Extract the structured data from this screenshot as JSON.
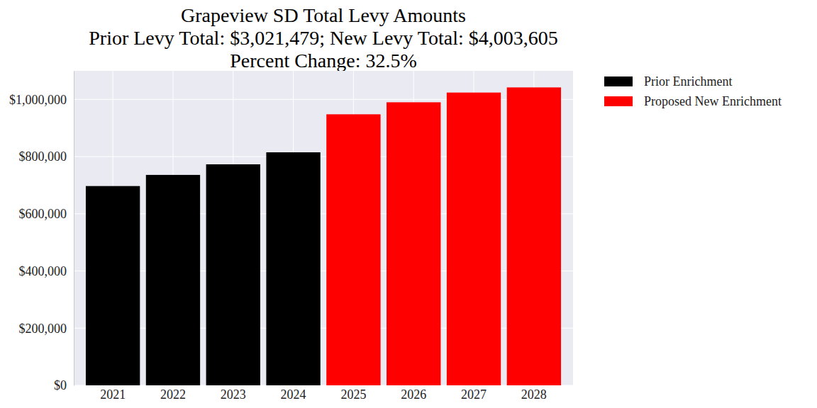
{
  "chart_data": {
    "type": "bar",
    "title": "Grapeview SD Total Levy Amounts",
    "subtitle": [
      "Prior Levy Total:  $3,021,479; New Levy Total: $4,003,605",
      "Percent Change: 32.5%"
    ],
    "categories": [
      "2021",
      "2022",
      "2023",
      "2024",
      "2025",
      "2026",
      "2027",
      "2028"
    ],
    "series": [
      {
        "name": "Prior Enrichment",
        "color": "#000000",
        "values": [
          697000,
          736000,
          773000,
          815000,
          null,
          null,
          null,
          null
        ]
      },
      {
        "name": "Proposed New Enrichment",
        "color": "#ff0000",
        "values": [
          null,
          null,
          null,
          null,
          948000,
          990000,
          1024000,
          1042000
        ]
      }
    ],
    "ylim": [
      0,
      1100000
    ],
    "yticks": [
      {
        "value": 0,
        "label": "$0"
      },
      {
        "value": 200000,
        "label": "$200,000"
      },
      {
        "value": 400000,
        "label": "$400,000"
      },
      {
        "value": 600000,
        "label": "$600,000"
      },
      {
        "value": 800000,
        "label": "$800,000"
      },
      {
        "value": 1000000,
        "label": "$1,000,000"
      }
    ],
    "grid": true,
    "legend": "right"
  }
}
